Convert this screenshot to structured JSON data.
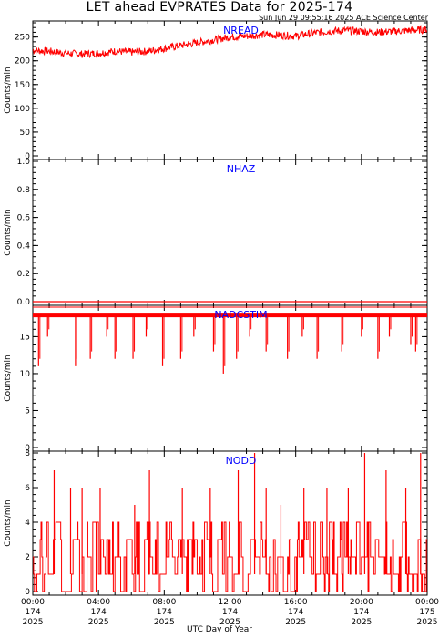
{
  "header": {
    "title": "LET ahead EVPRATES Data for 2025-174",
    "subtitle": "Sun Jun 29 09:55:16 2025 ACE Science Center"
  },
  "colors": {
    "data": "#ff0000",
    "panel_label": "#0000ff",
    "axes": "#000000"
  },
  "chart_data": [
    {
      "type": "line",
      "title": "NREAD",
      "ylabel": "Counts/min",
      "xlim": [
        0,
        24
      ],
      "ylim": [
        0,
        280
      ],
      "yticks": [
        0,
        50,
        100,
        150,
        200,
        250
      ],
      "x": [
        0,
        1,
        2,
        3,
        4,
        5,
        6,
        7,
        8,
        9,
        10,
        11,
        12,
        13,
        14,
        15,
        16,
        17,
        18,
        19,
        20,
        21,
        22,
        23,
        24
      ],
      "values": [
        222,
        220,
        216,
        214,
        216,
        220,
        218,
        220,
        226,
        232,
        238,
        244,
        250,
        252,
        255,
        254,
        252,
        258,
        262,
        264,
        262,
        260,
        262,
        264,
        266
      ]
    },
    {
      "type": "line",
      "title": "NHAZ",
      "ylabel": "Counts/min",
      "xlim": [
        0,
        24
      ],
      "ylim": [
        0,
        1
      ],
      "yticks": [
        0.0,
        0.2,
        0.4,
        0.6,
        0.8,
        1.0
      ],
      "x": [
        0,
        24
      ],
      "values": [
        0,
        0
      ]
    },
    {
      "type": "line",
      "title": "NADCSTIM",
      "ylabel": "Counts/min",
      "xlim": [
        0,
        24
      ],
      "ylim": [
        0,
        19
      ],
      "yticks": [
        0,
        5,
        10,
        15
      ],
      "baseline": 18,
      "dips": [
        {
          "x": 0.35,
          "y": 11
        },
        {
          "x": 0.9,
          "y": 15
        },
        {
          "x": 2.6,
          "y": 11
        },
        {
          "x": 3.5,
          "y": 12
        },
        {
          "x": 4.5,
          "y": 15
        },
        {
          "x": 5.0,
          "y": 12
        },
        {
          "x": 6.1,
          "y": 12
        },
        {
          "x": 6.9,
          "y": 15
        },
        {
          "x": 7.9,
          "y": 11
        },
        {
          "x": 9.0,
          "y": 12
        },
        {
          "x": 9.8,
          "y": 15
        },
        {
          "x": 11.0,
          "y": 13
        },
        {
          "x": 11.6,
          "y": 10
        },
        {
          "x": 12.4,
          "y": 12
        },
        {
          "x": 13.2,
          "y": 15
        },
        {
          "x": 14.2,
          "y": 13
        },
        {
          "x": 15.5,
          "y": 12
        },
        {
          "x": 16.4,
          "y": 15
        },
        {
          "x": 17.3,
          "y": 12
        },
        {
          "x": 18.8,
          "y": 13
        },
        {
          "x": 20.0,
          "y": 15
        },
        {
          "x": 21.0,
          "y": 12
        },
        {
          "x": 21.7,
          "y": 15
        },
        {
          "x": 23.0,
          "y": 14
        },
        {
          "x": 23.3,
          "y": 13
        }
      ]
    },
    {
      "type": "line",
      "title": "NODD",
      "ylabel": "Counts/min",
      "xlim": [
        0,
        24
      ],
      "ylim": [
        0,
        8
      ],
      "yticks": [
        0,
        2,
        4,
        6,
        8
      ],
      "levels": [
        0,
        1,
        2,
        3,
        4
      ],
      "spikes": [
        {
          "x": 1.3,
          "y": 7
        },
        {
          "x": 2.3,
          "y": 6
        },
        {
          "x": 3.0,
          "y": 6
        },
        {
          "x": 4.1,
          "y": 6
        },
        {
          "x": 6.2,
          "y": 5
        },
        {
          "x": 7.1,
          "y": 7
        },
        {
          "x": 9.1,
          "y": 6
        },
        {
          "x": 10.8,
          "y": 6
        },
        {
          "x": 12.5,
          "y": 7
        },
        {
          "x": 13.5,
          "y": 8
        },
        {
          "x": 14.2,
          "y": 6
        },
        {
          "x": 15.1,
          "y": 5
        },
        {
          "x": 16.5,
          "y": 6
        },
        {
          "x": 17.9,
          "y": 6
        },
        {
          "x": 19.2,
          "y": 6
        },
        {
          "x": 20.2,
          "y": 8
        },
        {
          "x": 21.5,
          "y": 7
        },
        {
          "x": 22.7,
          "y": 6
        },
        {
          "x": 23.6,
          "y": 8
        }
      ]
    }
  ],
  "xaxis": {
    "label": "UTC Day of Year",
    "ticks": [
      {
        "x": 0,
        "time": "00:00",
        "day": "174",
        "year": "2025"
      },
      {
        "x": 4,
        "time": "04:00",
        "day": "174",
        "year": "2025"
      },
      {
        "x": 8,
        "time": "08:00",
        "day": "174",
        "year": "2025"
      },
      {
        "x": 12,
        "time": "12:00",
        "day": "174",
        "year": "2025"
      },
      {
        "x": 16,
        "time": "16:00",
        "day": "174",
        "year": "2025"
      },
      {
        "x": 20,
        "time": "20:00",
        "day": "174",
        "year": "2025"
      },
      {
        "x": 24,
        "time": "00:00",
        "day": "175",
        "year": "2025"
      }
    ]
  }
}
